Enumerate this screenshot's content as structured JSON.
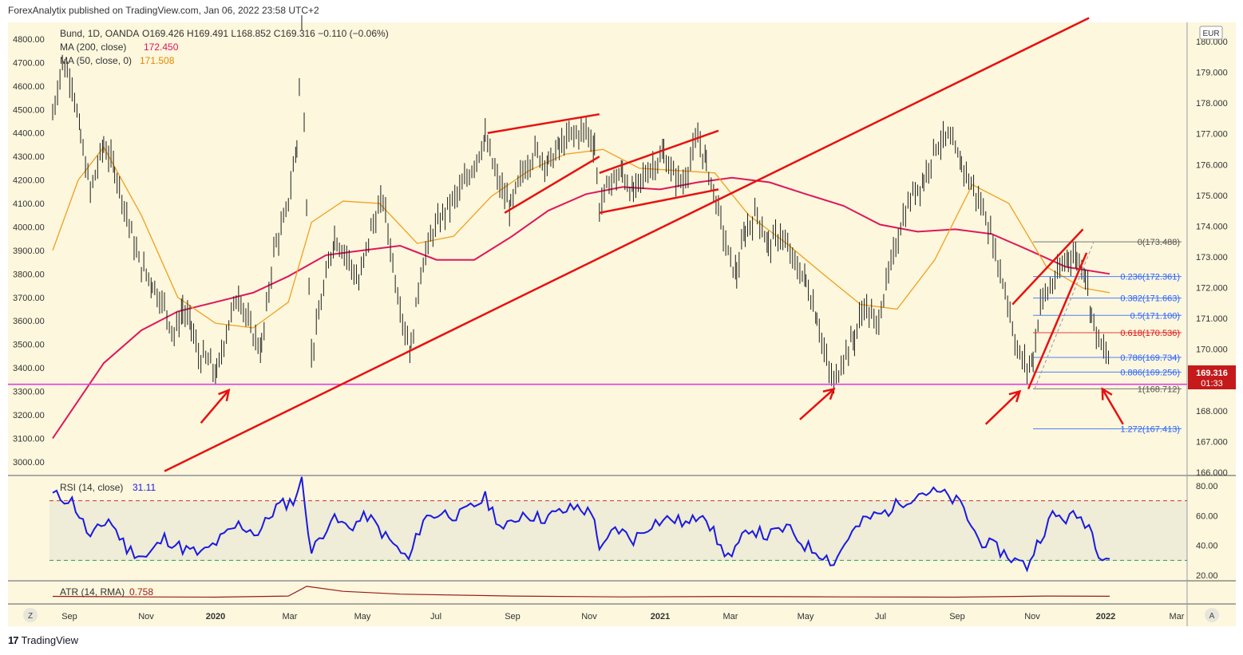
{
  "header": {
    "text": "ForexAnalytix published on TradingView.com, Jan 06, 2022 23:58 UTC+2"
  },
  "footer": {
    "brand": "TradingView",
    "logo": "tradingview-logo-icon"
  },
  "colors": {
    "background": "#fcf7dd",
    "price_bars": "#1e1e1e",
    "ma200": "#e0165d",
    "ma50": "#f0a020",
    "trendlines": "#e81010",
    "support": "#e040e0",
    "fib_line": "#2962ff",
    "fib_red": "#e81010",
    "rsi_line": "#1a1ae0",
    "atr_line": "#9a1a1a",
    "price_badge": "#c41a1a"
  },
  "legend": {
    "title": "Bund, 1D, OANDA",
    "ohlc": "O169.426  H169.491  L168.852  C169.316  −0.110 (−0.06%)",
    "ma200_label": "MA (200, close)",
    "ma200_value": "172.450",
    "ma50_label": "MA (50, close, 0)",
    "ma50_value": "171.508"
  },
  "currency_badge": "EUR",
  "price_badge": {
    "price": "169.316",
    "countdown": "01:33"
  },
  "chart_data": {
    "type": "candlestick",
    "symbol": "Bund, 1D, OANDA",
    "left_axis_ticks": [
      "4800.00",
      "4700.00",
      "4600.00",
      "4500.00",
      "4400.00",
      "4300.00",
      "4200.00",
      "4100.00",
      "4000.00",
      "3900.00",
      "3800.00",
      "3700.00",
      "3600.00",
      "3500.00",
      "3400.00",
      "3300.00",
      "3200.00",
      "3100.00",
      "3000.00"
    ],
    "right_axis_ticks": [
      "180.000",
      "179.000",
      "178.000",
      "177.000",
      "176.000",
      "175.000",
      "174.000",
      "173.000",
      "172.000",
      "171.000",
      "170.000",
      "169.000",
      "168.000",
      "167.000",
      "166.000"
    ],
    "x_ticks": [
      "Sep",
      "Nov",
      "2020",
      "Mar",
      "May",
      "Jul",
      "Sep",
      "Nov",
      "2021",
      "Mar",
      "May",
      "Jul",
      "Sep",
      "Nov",
      "2022",
      "Mar"
    ],
    "scale_buttons": {
      "left": "Z",
      "right": "A"
    },
    "price_path": [
      [
        "2019-08-20",
        4480
      ],
      [
        "2019-08-28",
        4700
      ],
      [
        "2019-09-05",
        4620
      ],
      [
        "2019-09-12",
        4380
      ],
      [
        "2019-09-20",
        4150
      ],
      [
        "2019-10-01",
        4350
      ],
      [
        "2019-10-10",
        4250
      ],
      [
        "2019-10-20",
        4050
      ],
      [
        "2019-10-30",
        3850
      ],
      [
        "2019-11-10",
        3760
      ],
      [
        "2019-11-20",
        3660
      ],
      [
        "2019-11-28",
        3540
      ],
      [
        "2019-12-05",
        3650
      ],
      [
        "2019-12-12",
        3580
      ],
      [
        "2019-12-18",
        3450
      ],
      [
        "2019-12-26",
        3430
      ],
      [
        "2020-01-02",
        3370
      ],
      [
        "2020-01-10",
        3560
      ],
      [
        "2020-01-20",
        3720
      ],
      [
        "2020-01-30",
        3560
      ],
      [
        "2020-02-08",
        3480
      ],
      [
        "2020-02-18",
        3900
      ],
      [
        "2020-02-28",
        4050
      ],
      [
        "2020-03-08",
        4350
      ],
      [
        "2020-03-12",
        4850
      ],
      [
        "2020-03-16",
        4100
      ],
      [
        "2020-03-20",
        3450
      ],
      [
        "2020-03-28",
        3680
      ],
      [
        "2020-04-08",
        3960
      ],
      [
        "2020-04-18",
        3880
      ],
      [
        "2020-04-28",
        3760
      ],
      [
        "2020-05-08",
        3990
      ],
      [
        "2020-05-18",
        4120
      ],
      [
        "2020-05-28",
        3780
      ],
      [
        "2020-06-05",
        3560
      ],
      [
        "2020-06-10",
        3480
      ],
      [
        "2020-06-18",
        3820
      ],
      [
        "2020-06-28",
        3980
      ],
      [
        "2020-07-10",
        4080
      ],
      [
        "2020-07-20",
        4150
      ],
      [
        "2020-08-01",
        4270
      ],
      [
        "2020-08-10",
        4380
      ],
      [
        "2020-08-20",
        4200
      ],
      [
        "2020-08-31",
        4080
      ],
      [
        "2020-09-10",
        4240
      ],
      [
        "2020-09-20",
        4320
      ],
      [
        "2020-10-01",
        4270
      ],
      [
        "2020-10-10",
        4340
      ],
      [
        "2020-10-20",
        4390
      ],
      [
        "2020-11-01",
        4410
      ],
      [
        "2020-11-08",
        4350
      ],
      [
        "2020-11-12",
        4080
      ],
      [
        "2020-11-20",
        4190
      ],
      [
        "2020-12-01",
        4230
      ],
      [
        "2020-12-10",
        4140
      ],
      [
        "2020-12-20",
        4230
      ],
      [
        "2021-01-04",
        4310
      ],
      [
        "2021-01-12",
        4220
      ],
      [
        "2021-01-20",
        4190
      ],
      [
        "2021-02-01",
        4380
      ],
      [
        "2021-02-08",
        4270
      ],
      [
        "2021-02-18",
        4070
      ],
      [
        "2021-02-26",
        3880
      ],
      [
        "2021-03-05",
        3800
      ],
      [
        "2021-03-12",
        3980
      ],
      [
        "2021-03-22",
        4060
      ],
      [
        "2021-03-31",
        3920
      ],
      [
        "2021-04-10",
        3970
      ],
      [
        "2021-04-20",
        3860
      ],
      [
        "2021-05-01",
        3770
      ],
      [
        "2021-05-10",
        3620
      ],
      [
        "2021-05-18",
        3420
      ],
      [
        "2021-05-24",
        3330
      ],
      [
        "2021-06-01",
        3450
      ],
      [
        "2021-06-10",
        3530
      ],
      [
        "2021-06-18",
        3670
      ],
      [
        "2021-06-28",
        3580
      ],
      [
        "2021-07-08",
        3790
      ],
      [
        "2021-07-18",
        4010
      ],
      [
        "2021-07-28",
        4140
      ],
      [
        "2021-08-06",
        4200
      ],
      [
        "2021-08-16",
        4350
      ],
      [
        "2021-08-26",
        4380
      ],
      [
        "2021-09-06",
        4270
      ],
      [
        "2021-09-16",
        4160
      ],
      [
        "2021-09-26",
        4050
      ],
      [
        "2021-10-06",
        3850
      ],
      [
        "2021-10-14",
        3690
      ],
      [
        "2021-10-22",
        3470
      ],
      [
        "2021-10-30",
        3400
      ],
      [
        "2021-11-04",
        3440
      ],
      [
        "2021-11-10",
        3680
      ],
      [
        "2021-11-18",
        3740
      ],
      [
        "2021-11-26",
        3810
      ],
      [
        "2021-12-03",
        3880
      ],
      [
        "2021-12-10",
        3870
      ],
      [
        "2021-12-17",
        3810
      ],
      [
        "2021-12-22",
        3630
      ],
      [
        "2021-12-28",
        3510
      ],
      [
        "2022-01-06",
        3430
      ]
    ],
    "ma200_path": [
      [
        "2019-08-20",
        3100
      ],
      [
        "2019-10-01",
        3420
      ],
      [
        "2019-11-01",
        3560
      ],
      [
        "2019-12-01",
        3640
      ],
      [
        "2020-01-01",
        3680
      ],
      [
        "2020-02-01",
        3720
      ],
      [
        "2020-03-01",
        3790
      ],
      [
        "2020-04-01",
        3880
      ],
      [
        "2020-05-01",
        3900
      ],
      [
        "2020-06-01",
        3920
      ],
      [
        "2020-07-01",
        3860
      ],
      [
        "2020-08-01",
        3860
      ],
      [
        "2020-09-01",
        3960
      ],
      [
        "2020-10-01",
        4070
      ],
      [
        "2020-11-01",
        4140
      ],
      [
        "2020-12-01",
        4170
      ],
      [
        "2021-01-01",
        4160
      ],
      [
        "2021-02-01",
        4190
      ],
      [
        "2021-03-01",
        4210
      ],
      [
        "2021-04-01",
        4190
      ],
      [
        "2021-05-01",
        4140
      ],
      [
        "2021-06-01",
        4090
      ],
      [
        "2021-07-01",
        4010
      ],
      [
        "2021-08-01",
        3980
      ],
      [
        "2021-09-01",
        3990
      ],
      [
        "2021-10-01",
        3970
      ],
      [
        "2021-11-01",
        3900
      ],
      [
        "2021-12-01",
        3830
      ],
      [
        "2022-01-06",
        3800
      ]
    ],
    "ma50_path": [
      [
        "2019-08-20",
        3900
      ],
      [
        "2019-09-10",
        4200
      ],
      [
        "2019-10-01",
        4340
      ],
      [
        "2019-11-01",
        4050
      ],
      [
        "2019-12-01",
        3700
      ],
      [
        "2020-01-01",
        3590
      ],
      [
        "2020-02-01",
        3570
      ],
      [
        "2020-03-01",
        3680
      ],
      [
        "2020-03-20",
        4020
      ],
      [
        "2020-04-15",
        4110
      ],
      [
        "2020-05-15",
        4100
      ],
      [
        "2020-06-15",
        3930
      ],
      [
        "2020-07-15",
        3960
      ],
      [
        "2020-08-15",
        4130
      ],
      [
        "2020-09-15",
        4240
      ],
      [
        "2020-10-15",
        4310
      ],
      [
        "2020-11-15",
        4330
      ],
      [
        "2020-12-15",
        4250
      ],
      [
        "2021-01-15",
        4240
      ],
      [
        "2021-02-15",
        4230
      ],
      [
        "2021-03-15",
        4050
      ],
      [
        "2021-04-15",
        3930
      ],
      [
        "2021-05-15",
        3800
      ],
      [
        "2021-06-15",
        3670
      ],
      [
        "2021-07-15",
        3650
      ],
      [
        "2021-08-15",
        3860
      ],
      [
        "2021-09-15",
        4180
      ],
      [
        "2021-10-15",
        4100
      ],
      [
        "2021-11-15",
        3830
      ],
      [
        "2021-12-15",
        3740
      ],
      [
        "2022-01-06",
        3720
      ]
    ],
    "fib_levels": [
      {
        "label": "0(173.488)",
        "price": 173.488,
        "color": "#555555"
      },
      {
        "label": "0.236(172.361)",
        "price": 172.361,
        "color": "#2962ff"
      },
      {
        "label": "0.382(171.663)",
        "price": 171.663,
        "color": "#2962ff"
      },
      {
        "label": "0.5(171.100)",
        "price": 171.1,
        "color": "#2962ff"
      },
      {
        "label": "0.618(170.536)",
        "price": 170.536,
        "color": "#e81010"
      },
      {
        "label": "0.786(169.734)",
        "price": 169.734,
        "color": "#2962ff"
      },
      {
        "label": "0.886(169.256)",
        "price": 169.256,
        "color": "#2962ff"
      },
      {
        "label": "1(168.712)",
        "price": 168.712,
        "color": "#555555"
      },
      {
        "label": "1.272(167.413)",
        "price": 167.413,
        "color": "#2962ff"
      }
    ],
    "support_level": 3330,
    "rsi": {
      "label": "RSI (14, close)",
      "value": "31.11",
      "ticks": [
        "80.00",
        "60.00",
        "40.00",
        "20.00"
      ],
      "overbought": 70,
      "oversold": 30,
      "path": [
        [
          "2019-08-20",
          74
        ],
        [
          "2019-09-05",
          70
        ],
        [
          "2019-09-20",
          45
        ],
        [
          "2019-10-05",
          58
        ],
        [
          "2019-10-20",
          38
        ],
        [
          "2019-11-05",
          32
        ],
        [
          "2019-11-20",
          45
        ],
        [
          "2019-12-05",
          38
        ],
        [
          "2019-12-20",
          34
        ],
        [
          "2020-01-05",
          44
        ],
        [
          "2020-01-20",
          54
        ],
        [
          "2020-02-05",
          48
        ],
        [
          "2020-02-20",
          66
        ],
        [
          "2020-03-05",
          70
        ],
        [
          "2020-03-12",
          84
        ],
        [
          "2020-03-20",
          35
        ],
        [
          "2020-04-05",
          58
        ],
        [
          "2020-04-20",
          52
        ],
        [
          "2020-05-05",
          60
        ],
        [
          "2020-05-20",
          46
        ],
        [
          "2020-06-08",
          30
        ],
        [
          "2020-06-20",
          58
        ],
        [
          "2020-07-05",
          62
        ],
        [
          "2020-07-20",
          60
        ],
        [
          "2020-08-10",
          72
        ],
        [
          "2020-08-25",
          50
        ],
        [
          "2020-09-10",
          62
        ],
        [
          "2020-09-25",
          58
        ],
        [
          "2020-10-10",
          62
        ],
        [
          "2020-10-25",
          66
        ],
        [
          "2020-11-08",
          60
        ],
        [
          "2020-11-12",
          34
        ],
        [
          "2020-11-25",
          52
        ],
        [
          "2020-12-10",
          44
        ],
        [
          "2020-12-25",
          55
        ],
        [
          "2021-01-10",
          58
        ],
        [
          "2021-01-25",
          54
        ],
        [
          "2021-02-05",
          64
        ],
        [
          "2021-02-20",
          38
        ],
        [
          "2021-03-01",
          32
        ],
        [
          "2021-03-15",
          52
        ],
        [
          "2021-03-30",
          46
        ],
        [
          "2021-04-15",
          52
        ],
        [
          "2021-04-30",
          40
        ],
        [
          "2021-05-15",
          34
        ],
        [
          "2021-05-24",
          28
        ],
        [
          "2021-06-05",
          46
        ],
        [
          "2021-06-20",
          58
        ],
        [
          "2021-07-05",
          62
        ],
        [
          "2021-07-20",
          70
        ],
        [
          "2021-08-05",
          76
        ],
        [
          "2021-08-20",
          75
        ],
        [
          "2021-09-05",
          68
        ],
        [
          "2021-09-20",
          44
        ],
        [
          "2021-10-05",
          38
        ],
        [
          "2021-10-20",
          30
        ],
        [
          "2021-10-30",
          26
        ],
        [
          "2021-11-10",
          46
        ],
        [
          "2021-11-20",
          60
        ],
        [
          "2021-12-01",
          58
        ],
        [
          "2021-12-10",
          60
        ],
        [
          "2021-12-20",
          54
        ],
        [
          "2021-12-28",
          36
        ],
        [
          "2022-01-06",
          31
        ]
      ]
    },
    "atr": {
      "label": "ATR (14, RMA)",
      "value": "0.758",
      "path": [
        [
          "2019-08-20",
          0.75
        ],
        [
          "2019-11-01",
          0.7
        ],
        [
          "2020-01-01",
          0.68
        ],
        [
          "2020-03-01",
          0.78
        ],
        [
          "2020-03-16",
          1.65
        ],
        [
          "2020-04-15",
          1.2
        ],
        [
          "2020-06-01",
          0.95
        ],
        [
          "2020-09-01",
          0.78
        ],
        [
          "2020-12-01",
          0.7
        ],
        [
          "2021-03-01",
          0.74
        ],
        [
          "2021-06-01",
          0.7
        ],
        [
          "2021-09-01",
          0.68
        ],
        [
          "2021-11-15",
          0.78
        ],
        [
          "2022-01-06",
          0.76
        ]
      ]
    },
    "annotations": [
      "rising-wedge-aug-nov-2020",
      "rising-wedge-nov-2020-feb-2021",
      "long-term-rising-trendline",
      "rising-wedge-nov-dec-2021",
      "support-arrows"
    ]
  }
}
